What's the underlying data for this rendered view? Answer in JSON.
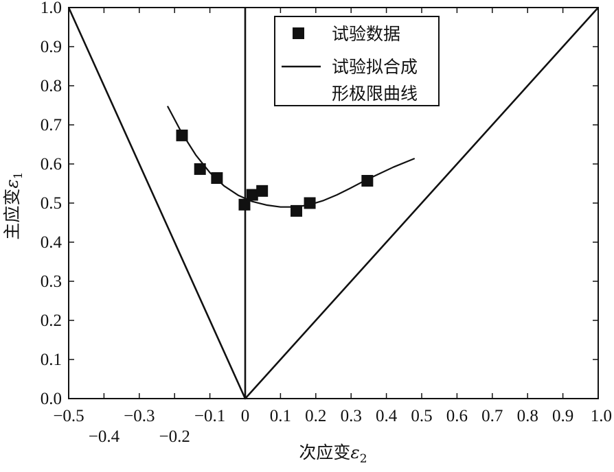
{
  "chart_data": {
    "type": "scatter",
    "title": "",
    "xlabel": "次应变",
    "xlabel_symbol": "ε",
    "xlabel_sub": "2",
    "ylabel": "主应变",
    "ylabel_symbol": "ε",
    "ylabel_sub": "1",
    "xlim": [
      -0.5,
      1.0
    ],
    "ylim": [
      0.0,
      1.0
    ],
    "grid": false,
    "legend_position": "top-right",
    "x_tick_labels_upper": [
      "−0.5",
      "−0.3",
      "−0.1",
      "0",
      "0.1",
      "0.2",
      "0.3",
      "0.4",
      "0.5",
      "0.6",
      "0.7",
      "0.8",
      "0.9",
      "1.0"
    ],
    "x_tick_labels_lower": [
      "−0.4",
      "−0.2"
    ],
    "y_tick_labels": [
      "0.0",
      "0.1",
      "0.2",
      "0.3",
      "0.4",
      "0.5",
      "0.6",
      "0.7",
      "0.8",
      "0.9",
      "1.0"
    ],
    "legend": {
      "scatter_label": "试验数据",
      "line_label_1": "试验拟合成",
      "line_label_2": "形极限曲线"
    },
    "series": [
      {
        "kind": "scatter",
        "points": [
          {
            "x": -0.179,
            "y": 0.673
          },
          {
            "x": -0.128,
            "y": 0.587
          },
          {
            "x": -0.08,
            "y": 0.564
          },
          {
            "x": -0.002,
            "y": 0.496
          },
          {
            "x": 0.02,
            "y": 0.521
          },
          {
            "x": 0.048,
            "y": 0.531
          },
          {
            "x": 0.145,
            "y": 0.48
          },
          {
            "x": 0.183,
            "y": 0.5
          },
          {
            "x": 0.346,
            "y": 0.557
          }
        ]
      },
      {
        "kind": "fit-curve",
        "points": [
          {
            "x": -0.22,
            "y": 0.748
          },
          {
            "x": -0.18,
            "y": 0.68
          },
          {
            "x": -0.14,
            "y": 0.623
          },
          {
            "x": -0.1,
            "y": 0.578
          },
          {
            "x": -0.06,
            "y": 0.544
          },
          {
            "x": -0.02,
            "y": 0.52
          },
          {
            "x": 0.02,
            "y": 0.504
          },
          {
            "x": 0.06,
            "y": 0.495
          },
          {
            "x": 0.1,
            "y": 0.49
          },
          {
            "x": 0.14,
            "y": 0.49
          },
          {
            "x": 0.18,
            "y": 0.495
          },
          {
            "x": 0.22,
            "y": 0.506
          },
          {
            "x": 0.26,
            "y": 0.521
          },
          {
            "x": 0.3,
            "y": 0.539
          },
          {
            "x": 0.34,
            "y": 0.558
          },
          {
            "x": 0.38,
            "y": 0.575
          },
          {
            "x": 0.42,
            "y": 0.592
          },
          {
            "x": 0.48,
            "y": 0.614
          }
        ]
      },
      {
        "kind": "reference-line",
        "points": [
          {
            "x": -0.5,
            "y": 1.0
          },
          {
            "x": 0.0,
            "y": 0.0
          },
          {
            "x": 1.0,
            "y": 1.0
          }
        ]
      },
      {
        "kind": "reference-line",
        "points": [
          {
            "x": 0.0,
            "y": 0.0
          },
          {
            "x": 0.0,
            "y": 1.0
          }
        ]
      }
    ]
  }
}
